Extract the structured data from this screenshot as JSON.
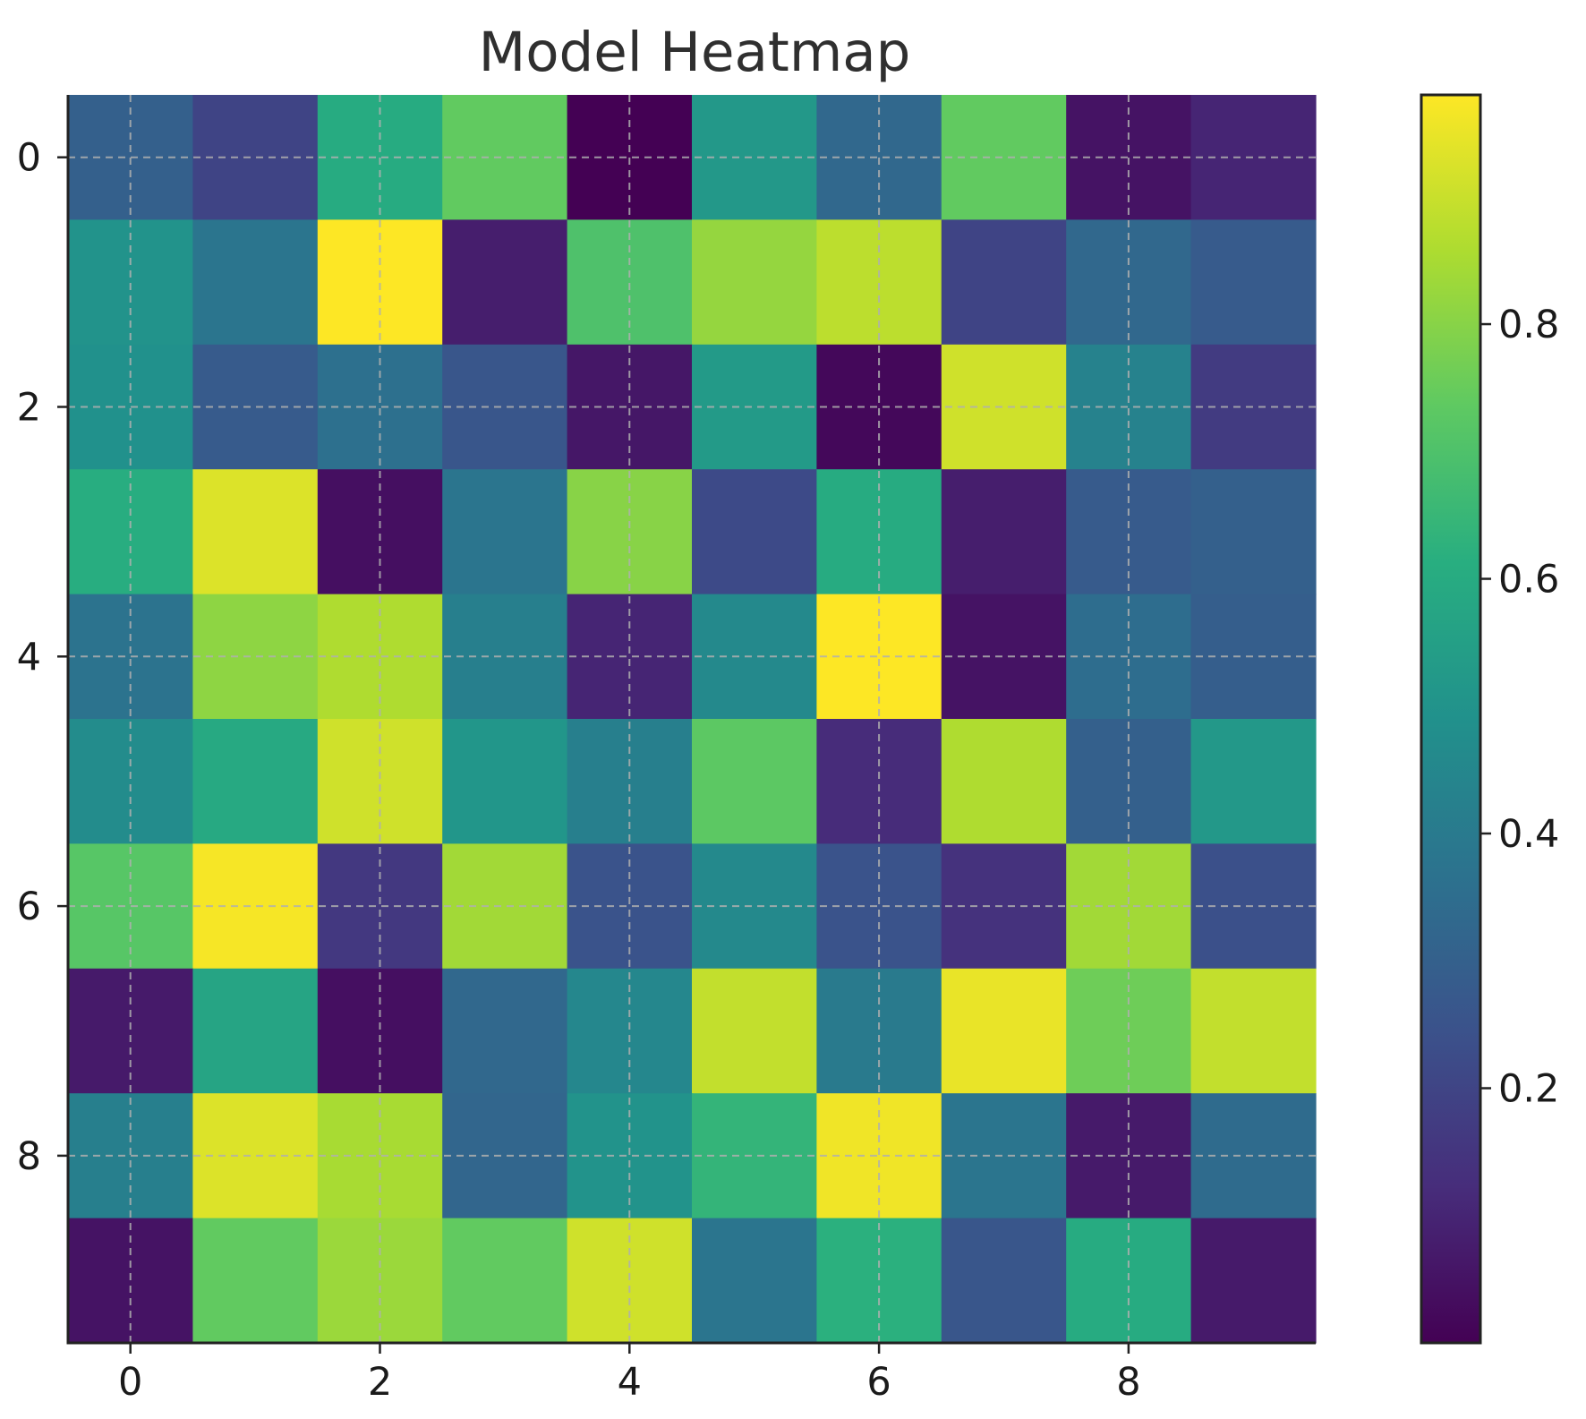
{
  "chart_data": {
    "type": "heatmap",
    "title": "Model Heatmap",
    "xlabel": "",
    "ylabel": "",
    "colormap": "viridis",
    "x_ticks": [
      0,
      2,
      4,
      6,
      8
    ],
    "y_ticks": [
      0,
      2,
      4,
      6,
      8
    ],
    "colorbar_ticks": [
      0.2,
      0.4,
      0.6,
      0.8
    ],
    "vmin": 0.0,
    "vmax": 0.98,
    "grid": true,
    "colorbar_position": "right",
    "values": [
      [
        0.3,
        0.2,
        0.6,
        0.74,
        0.0,
        0.52,
        0.33,
        0.74,
        0.05,
        0.1
      ],
      [
        0.5,
        0.38,
        0.98,
        0.08,
        0.7,
        0.82,
        0.88,
        0.2,
        0.33,
        0.28
      ],
      [
        0.49,
        0.28,
        0.36,
        0.26,
        0.06,
        0.53,
        0.02,
        0.91,
        0.43,
        0.17
      ],
      [
        0.61,
        0.93,
        0.04,
        0.38,
        0.8,
        0.22,
        0.6,
        0.08,
        0.28,
        0.3
      ],
      [
        0.37,
        0.81,
        0.86,
        0.42,
        0.1,
        0.46,
        0.98,
        0.05,
        0.35,
        0.29
      ],
      [
        0.47,
        0.59,
        0.91,
        0.51,
        0.42,
        0.73,
        0.12,
        0.86,
        0.3,
        0.52
      ],
      [
        0.72,
        0.97,
        0.16,
        0.84,
        0.25,
        0.46,
        0.25,
        0.14,
        0.84,
        0.24
      ],
      [
        0.07,
        0.57,
        0.04,
        0.33,
        0.45,
        0.89,
        0.4,
        0.95,
        0.76,
        0.89
      ],
      [
        0.42,
        0.93,
        0.85,
        0.32,
        0.5,
        0.64,
        0.96,
        0.38,
        0.07,
        0.34
      ],
      [
        0.05,
        0.74,
        0.83,
        0.74,
        0.91,
        0.38,
        0.62,
        0.26,
        0.6,
        0.07
      ]
    ]
  }
}
